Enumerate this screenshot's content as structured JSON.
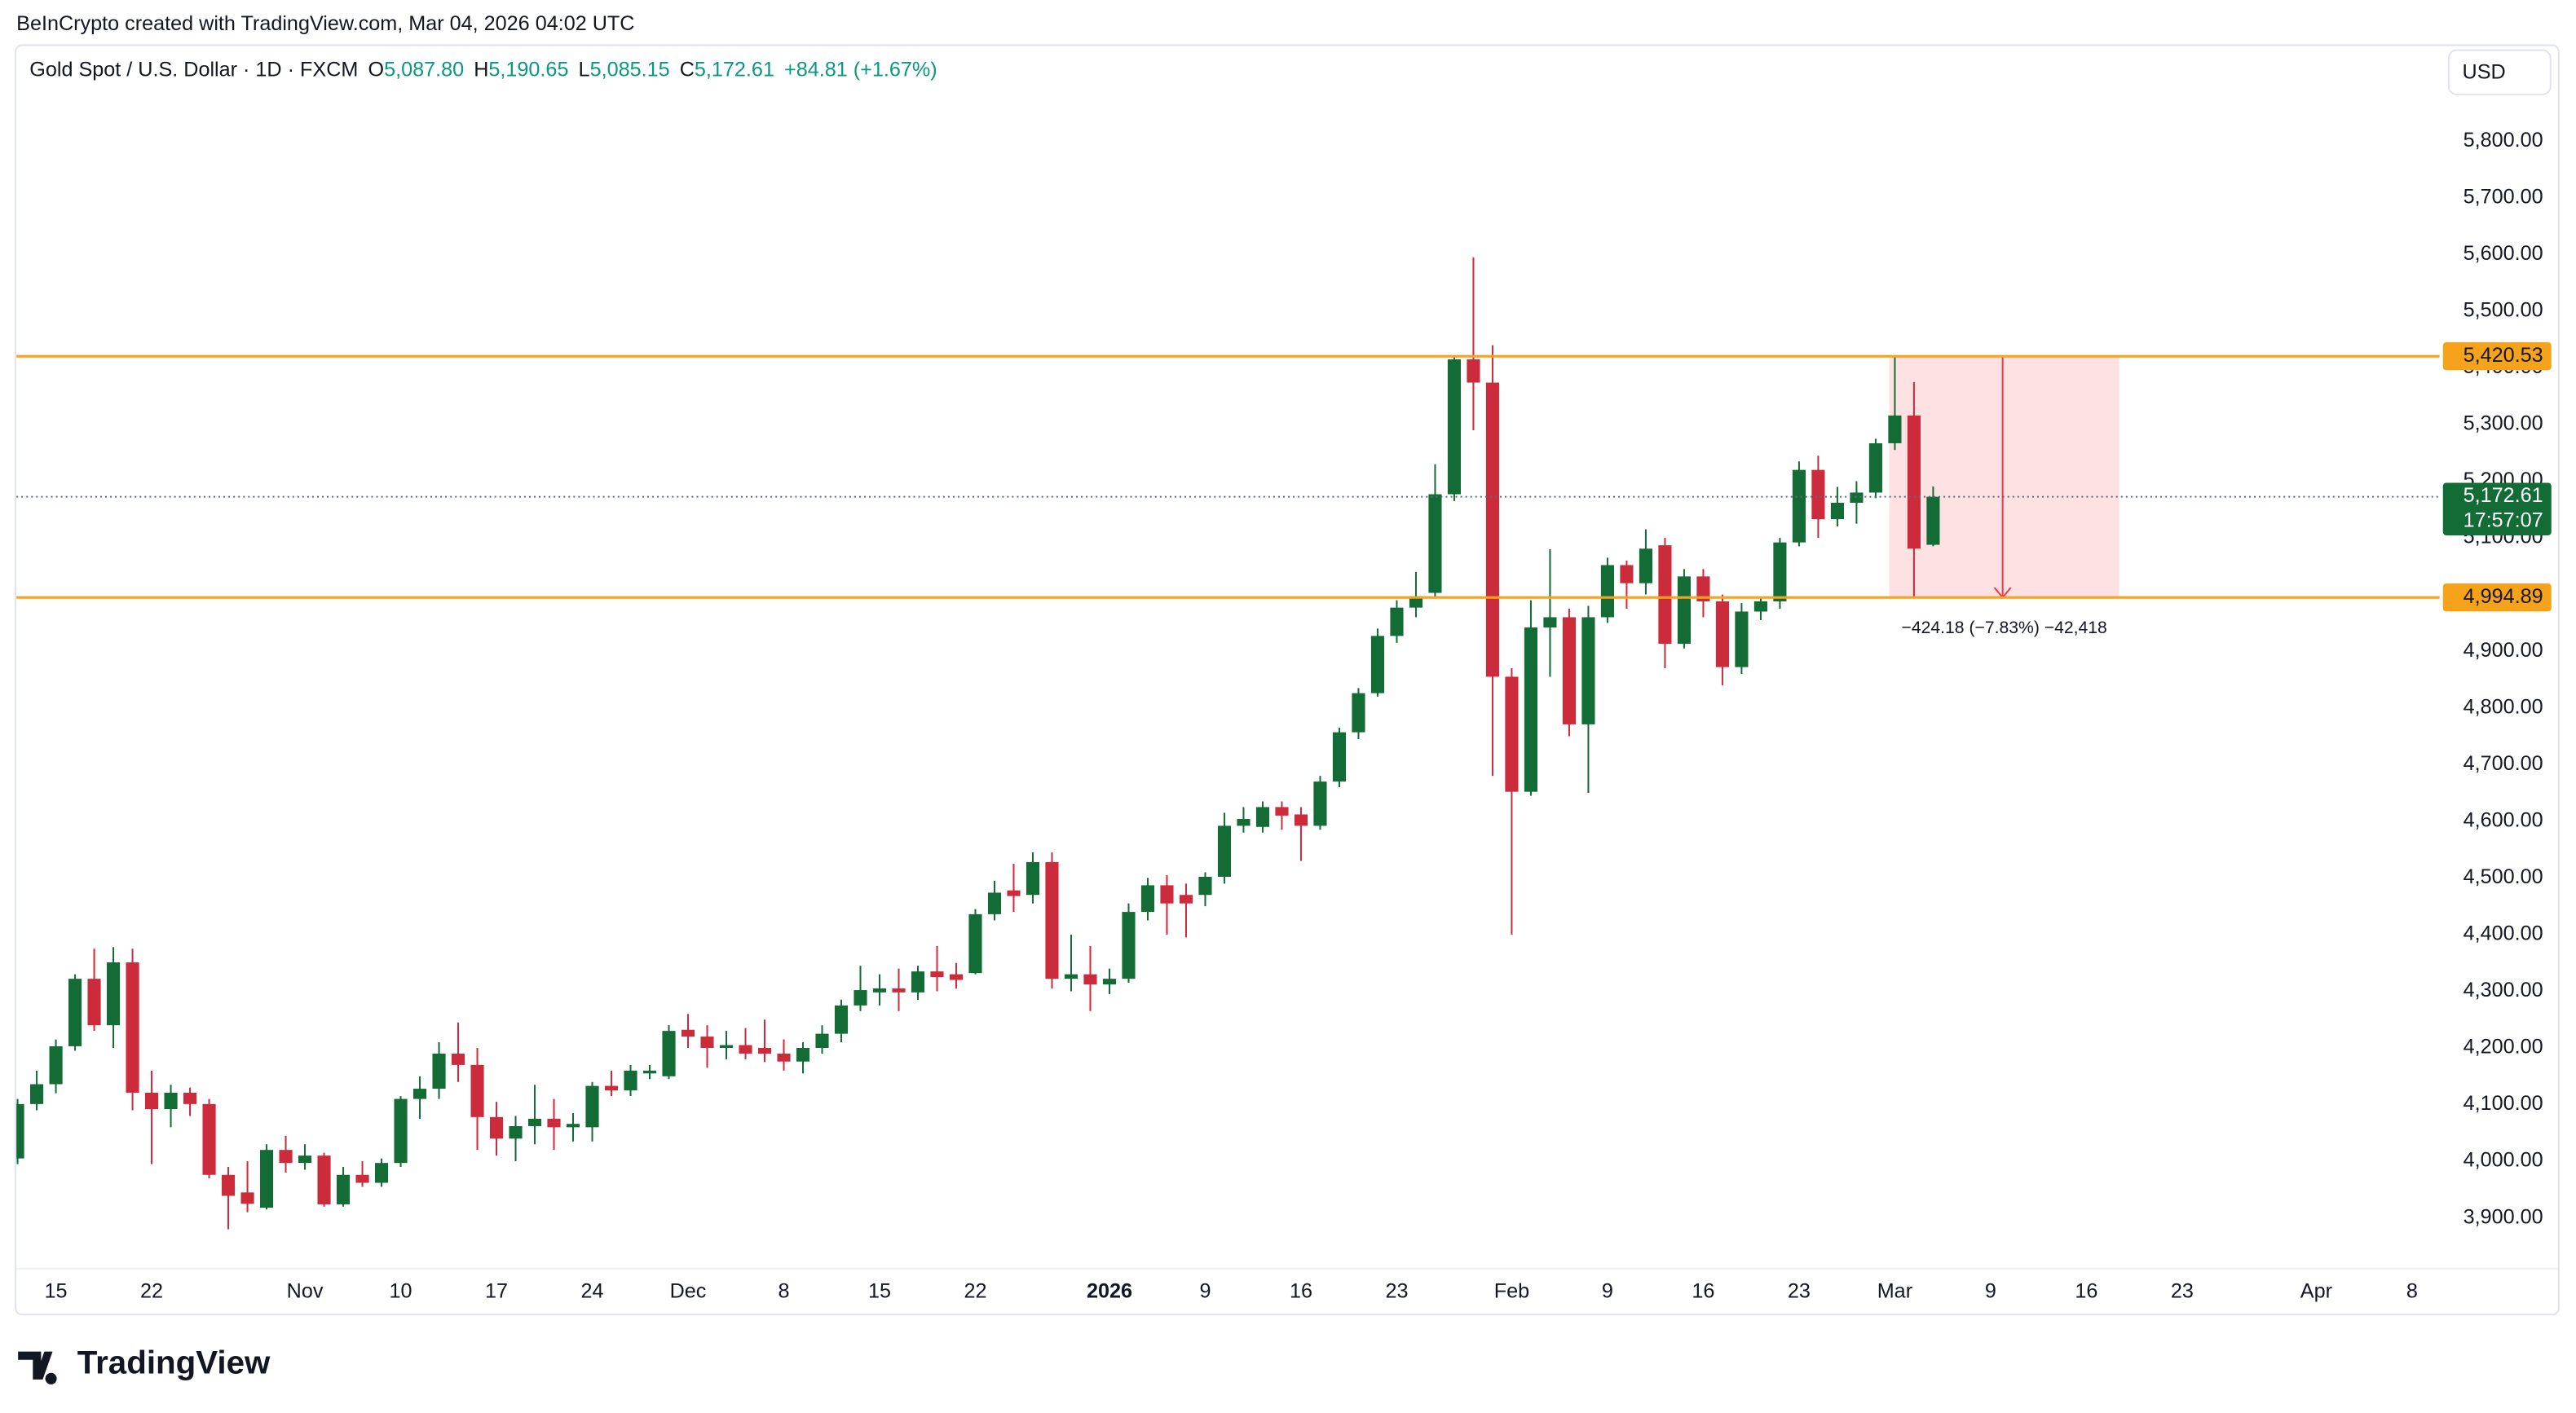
{
  "header": {
    "attribution": "BeInCrypto created with TradingView.com, Mar 04, 2026 04:02 UTC",
    "currency": "USD",
    "logo": "TradingView"
  },
  "chart_data": {
    "type": "candlestick",
    "title": "Gold Spot / U.S. Dollar · 1D · FXCM",
    "ohlc_legend": [
      {
        "label": "O",
        "value": "5,087.80"
      },
      {
        "label": "H",
        "value": "5,190.65"
      },
      {
        "label": "L",
        "value": "5,085.15"
      },
      {
        "label": "C",
        "value": "5,172.61"
      }
    ],
    "change": "+84.81 (+1.67%)",
    "up_color": "#136c35",
    "down_color": "#cc2b3b",
    "categories": [
      null,
      null,
      "15",
      null,
      null,
      null,
      null,
      "22",
      null,
      null,
      null,
      null,
      null,
      null,
      null,
      "Nov",
      null,
      null,
      null,
      null,
      "10",
      null,
      null,
      null,
      null,
      "17",
      null,
      null,
      null,
      null,
      "24",
      null,
      null,
      null,
      null,
      "Dec",
      null,
      null,
      null,
      null,
      "8",
      null,
      null,
      null,
      null,
      "15",
      null,
      null,
      null,
      null,
      "22",
      null,
      null,
      null,
      null,
      null,
      null,
      "2026",
      null,
      null,
      null,
      null,
      "9",
      null,
      null,
      null,
      null,
      "16",
      null,
      null,
      null,
      null,
      "23",
      null,
      null,
      null,
      null,
      null,
      "Feb",
      null,
      null,
      null,
      null,
      "9",
      null,
      null,
      null,
      null,
      "16",
      null,
      null,
      null,
      null,
      "23",
      null,
      null,
      null,
      null,
      "Mar",
      null,
      null,
      null,
      null,
      "9",
      null,
      null,
      null,
      null,
      "16",
      null,
      null,
      null,
      null,
      "23",
      null,
      null,
      null,
      null,
      null,
      null,
      "Apr",
      null,
      null,
      null,
      null,
      "8",
      null
    ],
    "open": [
      4005,
      4101,
      4136,
      4203,
      4322,
      4240,
      4351,
      4121,
      4092,
      4121,
      4101,
      3976,
      3945,
      3918,
      4020,
      3997,
      4010,
      3924,
      3976,
      3962,
      3997,
      4110,
      4128,
      4190,
      4170,
      4078,
      4040,
      4062,
      4075,
      4060,
      4060,
      4133,
      4125,
      4155,
      4150,
      4232,
      4220,
      4200,
      4205,
      4200,
      4190,
      4176,
      4200,
      4225,
      4275,
      4298,
      4305,
      4298,
      4335,
      4330,
      4332,
      4436,
      4478,
      4470,
      4528,
      4322,
      4330,
      4312,
      4322,
      4440,
      4487,
      4470,
      4470,
      4502,
      4592,
      4590,
      4625,
      4612,
      4592,
      4670,
      4757,
      4826,
      4927,
      4977,
      5003,
      5177,
      5415,
      5374,
      4855,
      4652,
      4942,
      4960,
      4771,
      4960,
      5052,
      5020,
      5087,
      4913,
      5032,
      4988,
      4872,
      4970,
      4988,
      5092,
      5220,
      5133,
      5162,
      5180,
      5267,
      5316,
      5087.8,
      null,
      null,
      null,
      null,
      null,
      null,
      null,
      null,
      null,
      null,
      null,
      null,
      null,
      null,
      null,
      null,
      null,
      null,
      null,
      null,
      null,
      null,
      null,
      null,
      null,
      null
    ],
    "high": [
      4110,
      4160,
      4215,
      4330,
      4375,
      4378,
      4375,
      4160,
      4135,
      4130,
      4110,
      3990,
      4000,
      4030,
      4045,
      4030,
      4015,
      3990,
      4000,
      4005,
      4115,
      4150,
      4210,
      4245,
      4200,
      4105,
      4080,
      4135,
      4110,
      4085,
      4140,
      4160,
      4170,
      4170,
      4240,
      4260,
      4240,
      4230,
      4235,
      4250,
      4215,
      4210,
      4240,
      4285,
      4345,
      4330,
      4340,
      4345,
      4380,
      4350,
      4445,
      4495,
      4525,
      4545,
      4545,
      4400,
      4380,
      4340,
      4455,
      4500,
      4505,
      4490,
      4510,
      4615,
      4625,
      4635,
      4635,
      4625,
      4680,
      4765,
      4835,
      4940,
      4990,
      5040,
      5230,
      5420,
      5595,
      5440,
      4870,
      4990,
      5080,
      4975,
      4980,
      5065,
      5060,
      5115,
      5100,
      5045,
      5045,
      5000,
      4985,
      4995,
      5100,
      5235,
      5245,
      5190,
      5200,
      5275,
      5420,
      5375,
      5190.65,
      null,
      null,
      null,
      null,
      null,
      null,
      null,
      null,
      null,
      null,
      null,
      null,
      null,
      null,
      null,
      null,
      null,
      null,
      null,
      null,
      null,
      null,
      null,
      null,
      null,
      null
    ],
    "low": [
      3995,
      4090,
      4120,
      4195,
      4230,
      4200,
      4090,
      3995,
      4060,
      4080,
      3970,
      3880,
      3910,
      3915,
      3980,
      3985,
      3920,
      3920,
      3955,
      3955,
      3990,
      4075,
      4110,
      4140,
      4020,
      4010,
      4000,
      4030,
      4020,
      4035,
      4035,
      4115,
      4115,
      4145,
      4145,
      4200,
      4165,
      4180,
      4180,
      4175,
      4160,
      4155,
      4190,
      4210,
      4265,
      4275,
      4265,
      4285,
      4300,
      4305,
      4330,
      4425,
      4440,
      4455,
      4305,
      4300,
      4265,
      4295,
      4315,
      4425,
      4400,
      4395,
      4450,
      4490,
      4580,
      4580,
      4585,
      4530,
      4585,
      4660,
      4745,
      4820,
      4915,
      4960,
      4995,
      5165,
      5290,
      4680,
      4400,
      4645,
      4855,
      4750,
      4650,
      4950,
      4975,
      5000,
      4870,
      4905,
      4960,
      4840,
      4860,
      4955,
      4975,
      5085,
      5100,
      5120,
      5125,
      5170,
      5255,
      4995,
      5085.15,
      null,
      null,
      null,
      null,
      null,
      null,
      null,
      null,
      null,
      null,
      null,
      null,
      null,
      null,
      null,
      null,
      null,
      null,
      null,
      null,
      null,
      null,
      null,
      null,
      null,
      null
    ],
    "close": [
      4101,
      4136,
      4203,
      4322,
      4240,
      4351,
      4121,
      4092,
      4121,
      4101,
      3976,
      3939,
      3925,
      4020,
      3997,
      4010,
      3924,
      3976,
      3962,
      3997,
      4110,
      4128,
      4190,
      4170,
      4078,
      4040,
      4062,
      4075,
      4060,
      4066,
      4133,
      4125,
      4160,
      4160,
      4230,
      4220,
      4200,
      4205,
      4190,
      4190,
      4176,
      4200,
      4225,
      4275,
      4302,
      4305,
      4298,
      4335,
      4325,
      4320,
      4436,
      4474,
      4468,
      4528,
      4322,
      4330,
      4312,
      4322,
      4440,
      4487,
      4455,
      4455,
      4502,
      4592,
      4604,
      4625,
      4610,
      4592,
      4670,
      4757,
      4826,
      4927,
      4977,
      4997,
      5177,
      5415,
      5374,
      4855,
      4652,
      4942,
      4960,
      4771,
      4960,
      5052,
      5020,
      5081,
      4913,
      5032,
      4988,
      4872,
      4970,
      4988,
      5092,
      5220,
      5133,
      5162,
      5180,
      5267,
      5316,
      5081,
      5172.61,
      null,
      null,
      null,
      null,
      null,
      null,
      null,
      null,
      null,
      null,
      null,
      null,
      null,
      null,
      null,
      null,
      null,
      null,
      null,
      null,
      null,
      null,
      null,
      null,
      null,
      null
    ],
    "ylim": [
      3812,
      5968
    ],
    "yticks": [
      {
        "value": 3900,
        "label": "3,900.00"
      },
      {
        "value": 4000,
        "label": "4,000.00"
      },
      {
        "value": 4100,
        "label": "4,100.00"
      },
      {
        "value": 4200,
        "label": "4,200.00"
      },
      {
        "value": 4300,
        "label": "4,300.00"
      },
      {
        "value": 4400,
        "label": "4,400.00"
      },
      {
        "value": 4500,
        "label": "4,500.00"
      },
      {
        "value": 4600,
        "label": "4,600.00"
      },
      {
        "value": 4700,
        "label": "4,700.00"
      },
      {
        "value": 4800,
        "label": "4,800.00"
      },
      {
        "value": 4900,
        "label": "4,900.00"
      },
      {
        "value": 5000,
        "label": "5,000.00"
      },
      {
        "value": 5100,
        "label": "5,100.00"
      },
      {
        "value": 5200,
        "label": "5,200.00"
      },
      {
        "value": 5300,
        "label": "5,300.00"
      },
      {
        "value": 5400,
        "label": "5,400.00"
      },
      {
        "value": 5500,
        "label": "5,500.00"
      },
      {
        "value": 5600,
        "label": "5,600.00"
      },
      {
        "value": 5700,
        "label": "5,700.00"
      },
      {
        "value": 5800,
        "label": "5,800.00"
      }
    ],
    "grid": false,
    "levels": [
      {
        "value": 5420.53,
        "label": "5,420.53",
        "color": "#f7a21b"
      },
      {
        "value": 4994.89,
        "label": "4,994.89",
        "color": "#f7a21b"
      }
    ],
    "current_price": {
      "value": 5172.61,
      "label": "5,172.61",
      "countdown": "17:57:07",
      "color": "#136c35"
    },
    "measure": {
      "text": "−424.18 (−7.83%) −42,418",
      "color": "#f23645"
    }
  }
}
